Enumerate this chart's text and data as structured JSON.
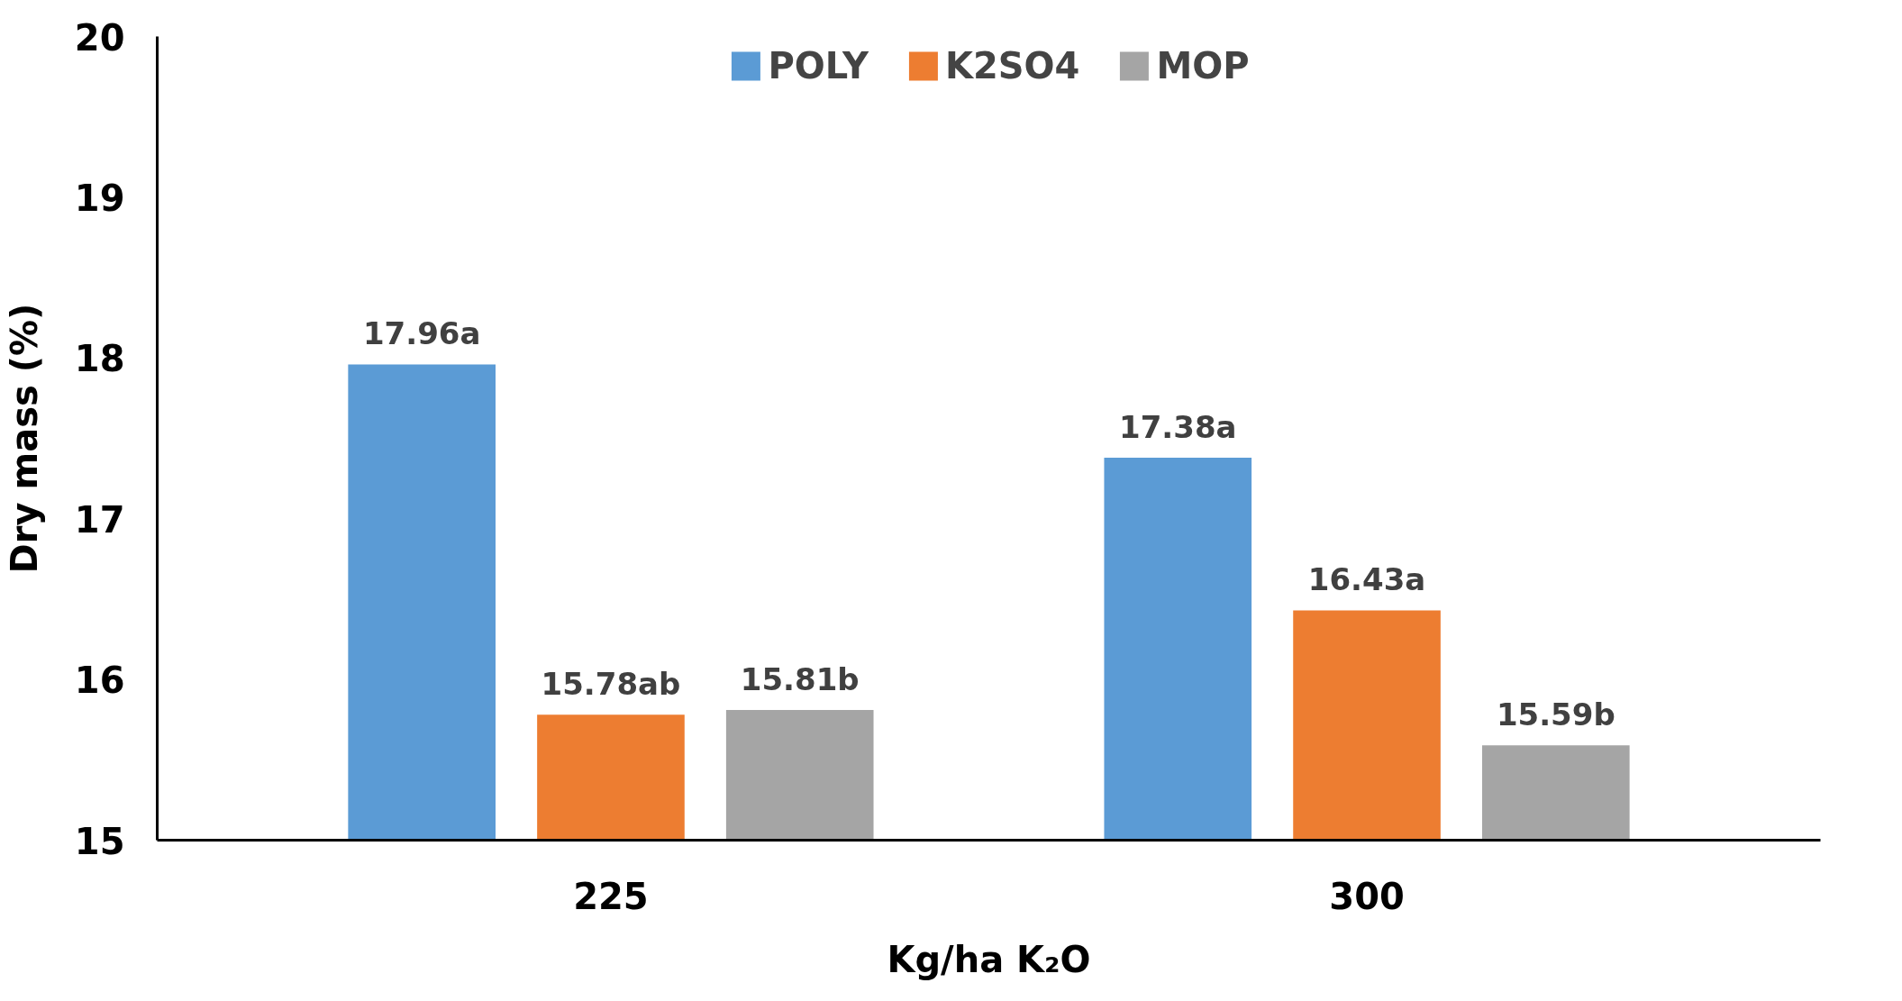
{
  "chart_data": {
    "type": "bar",
    "xlabel": "Kg/ha K₂O",
    "ylabel": "Dry mass (%)",
    "categories": [
      "225",
      "300"
    ],
    "series": [
      {
        "name": "POLY",
        "color": "#5b9bd5",
        "values": [
          17.96,
          17.38
        ],
        "value_labels": [
          "17.96a",
          "17.38a"
        ]
      },
      {
        "name": "K2SO4",
        "color": "#ed7d31",
        "values": [
          15.78,
          16.43
        ],
        "value_labels": [
          "15.78ab",
          "16.43a"
        ]
      },
      {
        "name": "MOP",
        "color": "#a5a5a5",
        "values": [
          15.81,
          15.59
        ],
        "value_labels": [
          "15.81b",
          "15.59b"
        ]
      }
    ],
    "ylim": [
      15,
      20
    ],
    "yticks": [
      15,
      16,
      17,
      18,
      19,
      20
    ],
    "grid": false,
    "legend": "top"
  }
}
